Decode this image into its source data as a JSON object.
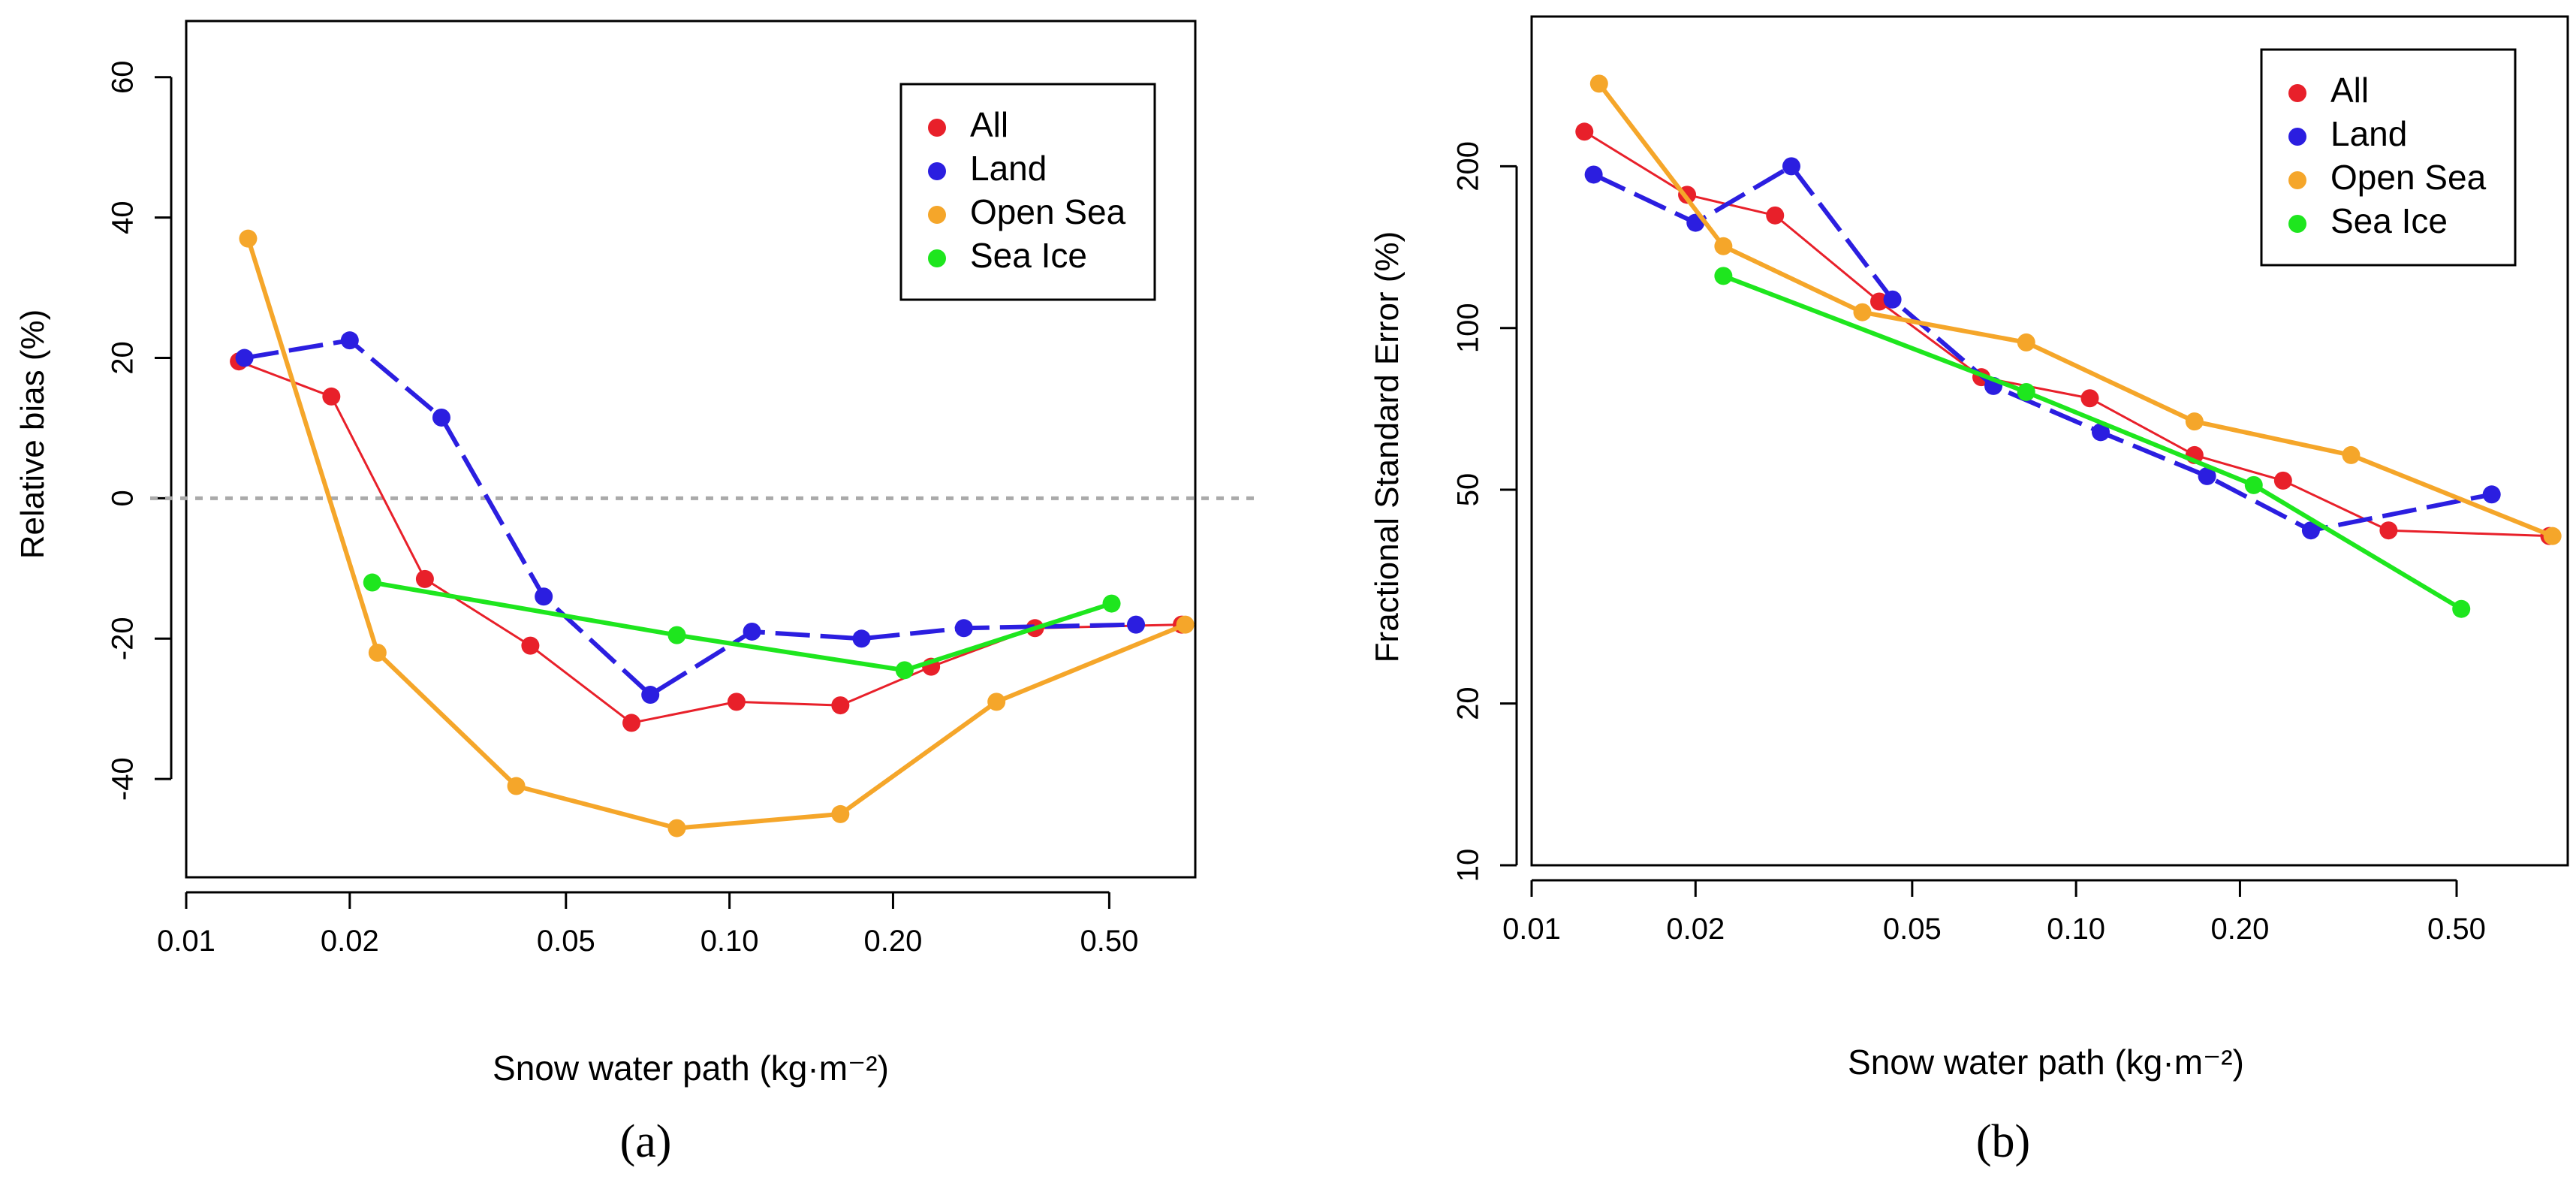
{
  "chart_data": [
    {
      "panel_label": "(a)",
      "type": "line",
      "xscale": "log",
      "yscale": "linear",
      "xlabel": "Snow water path (kg·m⁻²)",
      "ylabel": "Relative bias (%)",
      "xlim": [
        0.01,
        0.72
      ],
      "ylim": [
        -54,
        68
      ],
      "x_ticks": [
        0.01,
        0.02,
        0.05,
        0.1,
        0.2,
        0.5
      ],
      "x_tick_labels": [
        "0.01",
        "0.02",
        "0.05",
        "0.10",
        "0.20",
        "0.50"
      ],
      "y_ticks": [
        -40,
        -20,
        0,
        20,
        40,
        60
      ],
      "y_tick_labels": [
        "-40",
        "-20",
        "0",
        "20",
        "40",
        "60"
      ],
      "reference_line": {
        "y": 0,
        "style": "dotted",
        "color": "#aaaaaa"
      },
      "legend_position": "top-right",
      "series": [
        {
          "name": "All",
          "color": "#e8202a",
          "style": "thin",
          "x": [
            0.0125,
            0.0185,
            0.0275,
            0.043,
            0.066,
            0.103,
            0.16,
            0.235,
            0.365,
            0.68
          ],
          "y": [
            19.5,
            14.5,
            -11.5,
            -21,
            -32,
            -29,
            -29.5,
            -24,
            -18.5,
            -18
          ]
        },
        {
          "name": "Land",
          "color": "#2b1ee0",
          "style": "dashed",
          "x": [
            0.0128,
            0.02,
            0.0295,
            0.0455,
            0.0715,
            0.11,
            0.175,
            0.27,
            0.56
          ],
          "y": [
            20,
            22.5,
            11.5,
            -14,
            -28,
            -19,
            -20,
            -18.5,
            -18
          ]
        },
        {
          "name": "Open Sea",
          "color": "#f5a62a",
          "style": "solid",
          "x": [
            0.013,
            0.0225,
            0.0405,
            0.08,
            0.16,
            0.31,
            0.69
          ],
          "y": [
            37,
            -22,
            -41,
            -47,
            -45,
            -29,
            -18
          ]
        },
        {
          "name": "Sea Ice",
          "color": "#1ee61e",
          "style": "solid",
          "x": [
            0.022,
            0.08,
            0.21,
            0.505
          ],
          "y": [
            -12,
            -19.5,
            -24.5,
            -15
          ]
        }
      ]
    },
    {
      "panel_label": "(b)",
      "type": "line",
      "xscale": "log",
      "yscale": "log",
      "xlabel": "Snow water path (kg·m⁻²)",
      "ylabel": "Fractional Standard Error (%)",
      "xlim": [
        0.01,
        0.8
      ],
      "ylim": [
        10,
        380
      ],
      "x_ticks": [
        0.01,
        0.02,
        0.05,
        0.1,
        0.2,
        0.5
      ],
      "x_tick_labels": [
        "0.01",
        "0.02",
        "0.05",
        "0.10",
        "0.20",
        "0.50"
      ],
      "y_ticks": [
        10,
        20,
        50,
        100,
        200
      ],
      "y_tick_labels": [
        "10",
        "20",
        "50",
        "100",
        "200"
      ],
      "legend_position": "top-right",
      "series": [
        {
          "name": "All",
          "color": "#e8202a",
          "style": "thin",
          "x": [
            0.0125,
            0.0193,
            0.028,
            0.0435,
            0.067,
            0.106,
            0.165,
            0.24,
            0.375,
            0.74
          ],
          "y": [
            232,
            177,
            162,
            112,
            81,
            74,
            58,
            52,
            42,
            41
          ]
        },
        {
          "name": "Land",
          "color": "#2b1ee0",
          "style": "dashed",
          "x": [
            0.013,
            0.02,
            0.03,
            0.046,
            0.0705,
            0.111,
            0.174,
            0.27,
            0.58
          ],
          "y": [
            193,
            157,
            200,
            113,
            78,
            64,
            53,
            42,
            49
          ]
        },
        {
          "name": "Open Sea",
          "color": "#f5a62a",
          "style": "solid",
          "x": [
            0.0133,
            0.0225,
            0.0405,
            0.081,
            0.165,
            0.32,
            0.75
          ],
          "y": [
            285,
            142,
            107,
            94,
            67,
            58,
            41
          ]
        },
        {
          "name": "Sea Ice",
          "color": "#1ee61e",
          "style": "solid",
          "x": [
            0.0225,
            0.081,
            0.212,
            0.51
          ],
          "y": [
            125,
            76,
            51,
            30
          ]
        }
      ]
    }
  ]
}
